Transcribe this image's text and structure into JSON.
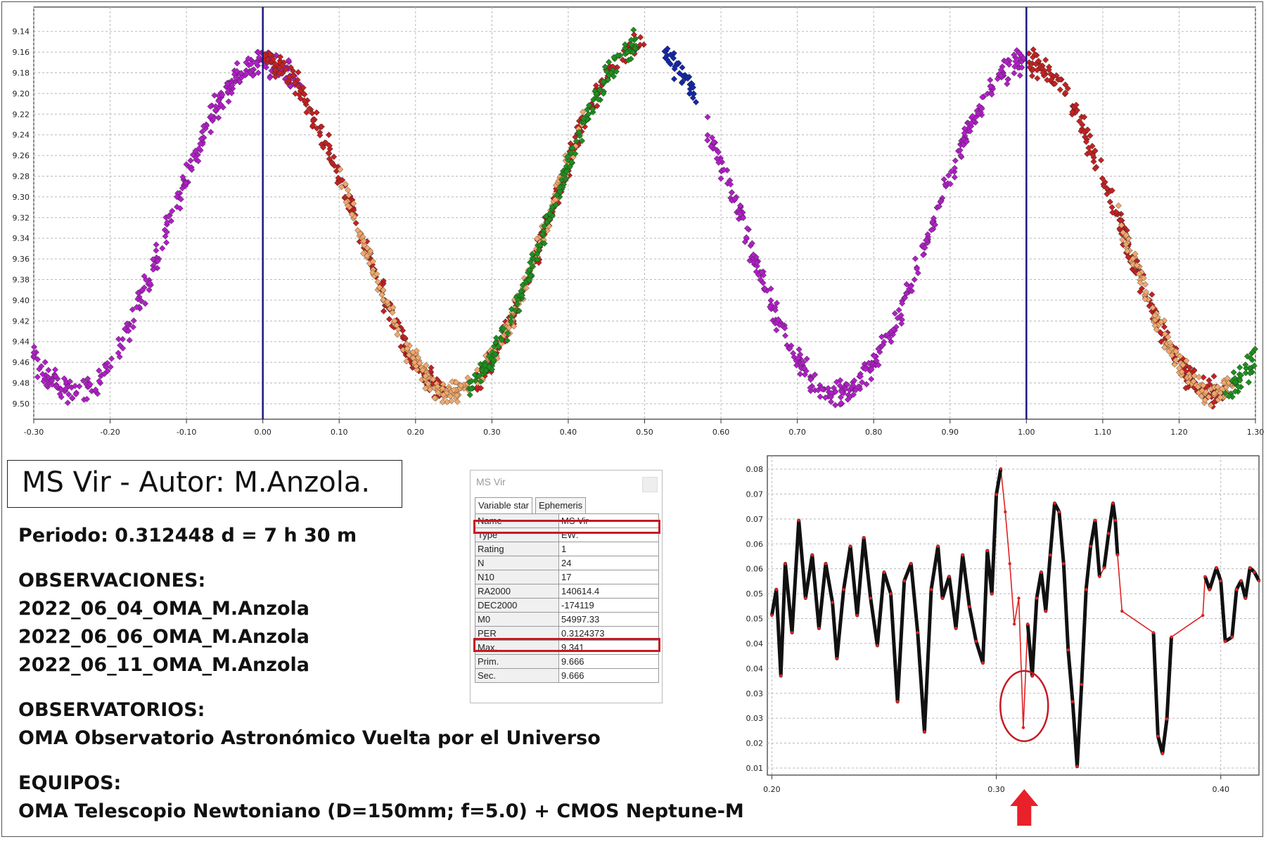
{
  "chart_data": [
    {
      "type": "scatter",
      "x_ticks": [
        "-0.30",
        "-0.20",
        "-0.10",
        "0.00",
        "0.10",
        "0.20",
        "0.30",
        "0.40",
        "0.50",
        "0.60",
        "0.70",
        "0.80",
        "0.90",
        "1.00",
        "1.10",
        "1.20",
        "1.30"
      ],
      "y_ticks": [
        "9.14",
        "9.16",
        "9.18",
        "9.20",
        "9.22",
        "9.24",
        "9.26",
        "9.28",
        "9.30",
        "9.32",
        "9.34",
        "9.36",
        "9.38",
        "9.40",
        "9.42",
        "9.44",
        "9.46",
        "9.48",
        "9.50"
      ],
      "xlim": [
        -0.3,
        1.3
      ],
      "ylim": [
        9.13,
        9.515
      ],
      "y_inverted": true,
      "grid": true,
      "vertical_markers": [
        0.0,
        1.0
      ],
      "series": [
        {
          "color": "#b01fc6",
          "segments": [
            [
              -0.3,
              0.05
            ],
            [
              0.58,
              1.0
            ]
          ]
        },
        {
          "color": "#c32222",
          "segments": [
            [
              0.0,
              0.24
            ],
            [
              0.28,
              0.5
            ],
            [
              1.0,
              1.26
            ]
          ]
        },
        {
          "color": "#f0a86c",
          "segments": [
            [
              0.1,
              0.27
            ],
            [
              0.28,
              0.42
            ],
            [
              1.12,
              1.27
            ]
          ]
        },
        {
          "color": "#1e8f1e",
          "segments": [
            [
              0.27,
              0.49
            ],
            [
              1.26,
              1.3
            ]
          ]
        },
        {
          "color": "#1427a8",
          "segments": [
            [
              0.525,
              0.57
            ]
          ]
        }
      ]
    },
    {
      "type": "line",
      "x_ticks": [
        "0.20",
        "0.30",
        "0.40"
      ],
      "y_ticks": [
        "0.08",
        "0.07",
        "0.07",
        "0.06",
        "0.06",
        "0.05",
        "0.05",
        "0.04",
        "0.04",
        "0.03",
        "0.03",
        "0.02",
        "0.01"
      ],
      "xlim": [
        0.198,
        0.417
      ],
      "ylim": [
        0.009,
        0.083
      ],
      "grid": true,
      "minimum_period": 0.3124373,
      "series": [
        {
          "color": "#111111",
          "values": "periodogram dispersion curve"
        },
        {
          "color": "#dd2222",
          "values": "connecting points"
        }
      ]
    }
  ],
  "title": "MS Vir - Autor: M.Anzola.",
  "periodo": "Periodo: 0.312448 d = 7 h 30 m",
  "observaciones_header": "OBSERVACIONES:",
  "observaciones": [
    "2022_06_04_OMA_M.Anzola",
    "2022_06_06_OMA_M.Anzola",
    "2022_06_11_OMA_M.Anzola"
  ],
  "observatorios_header": "OBSERVATORIOS:",
  "observatorios": "OMA Observatorio Astronómico Vuelta por el Universo",
  "equipos_header": "EQUIPOS:",
  "equipos": "OMA Telescopio Newtoniano (D=150mm; f=5.0) + CMOS Neptune-M",
  "panel": {
    "title": "MS Vir",
    "tabs": [
      "Variable star",
      "Ephemeris"
    ],
    "rows": [
      {
        "k": "Name",
        "v": "MS Vir"
      },
      {
        "k": "Type",
        "v": "EW:"
      },
      {
        "k": "Rating",
        "v": "1"
      },
      {
        "k": "N",
        "v": "24"
      },
      {
        "k": "N10",
        "v": "17"
      },
      {
        "k": "RA2000",
        "v": "140614.4"
      },
      {
        "k": "DEC2000",
        "v": "-174119"
      },
      {
        "k": "M0",
        "v": "54997.33"
      },
      {
        "k": "PER",
        "v": "0.3124373"
      },
      {
        "k": "Max.",
        "v": "9.341"
      },
      {
        "k": "Prim.",
        "v": "9.666"
      },
      {
        "k": "Sec.",
        "v": "9.666"
      }
    ]
  },
  "colors": {
    "highlight": "#c41a25",
    "marker_line": "#1a1a7a",
    "arrow": "#e8212a"
  }
}
